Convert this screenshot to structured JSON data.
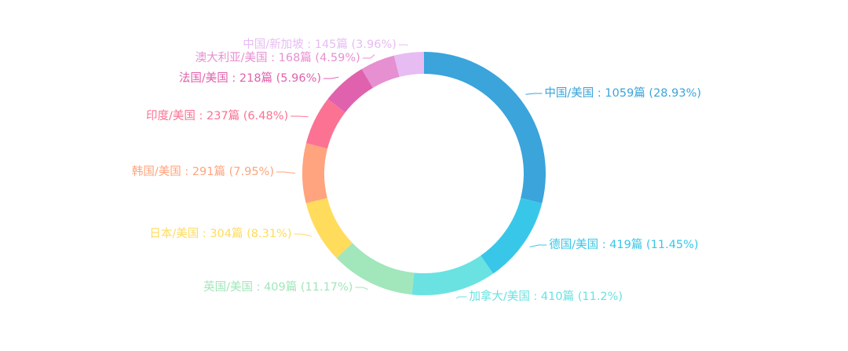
{
  "chart_data": {
    "type": "pie",
    "variant": "donut",
    "start": "top, clockwise",
    "categories": [
      "中国/美国",
      "德国/美国",
      "加拿大/美国",
      "英国/美国",
      "日本/美国",
      "韩国/美国",
      "印度/美国",
      "法国/美国",
      "澳大利亚/美国",
      "中国/新加坡"
    ],
    "values": [
      1059,
      419,
      410,
      409,
      304,
      291,
      237,
      218,
      168,
      145
    ],
    "labels": [
      "中国/美国 : 1059篇 (28.93%)",
      "德国/美国 : 419篇 (11.45%)",
      "加拿大/美国 : 410篇 (11.2%)",
      "英国/美国 : 409篇 (11.17%)",
      "日本/美国 : 304篇 (8.31%)",
      "韩国/美国 : 291篇 (7.95%)",
      "印度/美国 : 237篇 (6.48%)",
      "法国/美国 : 218篇 (5.96%)",
      "澳大利亚/美国 : 168篇 (4.59%)",
      "中国/新加坡 : 145篇 (3.96%)"
    ],
    "colors": [
      "#3AA4DB",
      "#38C7E8",
      "#6AE2E2",
      "#A2E6BB",
      "#FFDC5C",
      "#FFA47E",
      "#FB7293",
      "#E062AE",
      "#E690D1",
      "#E7BCF3"
    ],
    "title": "",
    "legend": "none"
  }
}
